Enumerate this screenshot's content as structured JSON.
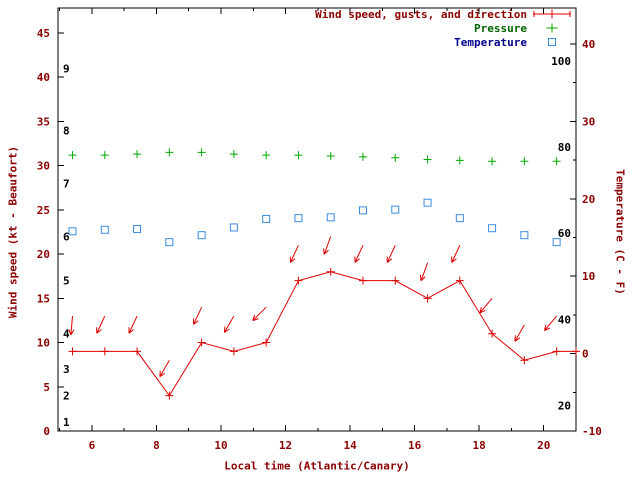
{
  "chart_data": {
    "type": "line",
    "x_axis": {
      "label": "Local time (Atlantic/Canary)",
      "min": 4.95,
      "max": 21.0,
      "major_ticks": [
        6,
        8,
        10,
        12,
        14,
        16,
        18,
        20
      ],
      "minor_ticks": [
        5,
        7,
        9,
        11,
        13,
        15,
        17,
        19,
        21
      ]
    },
    "y_left_axis": {
      "label": "Wind speed (kt - Beaufort)",
      "min": 0,
      "max": 45,
      "ticks": [
        0,
        5,
        10,
        15,
        20,
        25,
        30,
        35,
        40,
        45
      ],
      "beaufort_labels": [
        {
          "label": "1",
          "kt": 1
        },
        {
          "label": "2",
          "kt": 4
        },
        {
          "label": "3",
          "kt": 7
        },
        {
          "label": "4",
          "kt": 11
        },
        {
          "label": "5",
          "kt": 17
        },
        {
          "label": "6",
          "kt": 22
        },
        {
          "label": "7",
          "kt": 28
        },
        {
          "label": "8",
          "kt": 34
        },
        {
          "label": "9",
          "kt": 41
        }
      ]
    },
    "y_right_axis": {
      "label": "Temperature (C - F)",
      "min": -10,
      "max": 40,
      "ticks": [
        -10,
        0,
        10,
        20,
        30,
        40
      ],
      "minor_ticks": [
        -5,
        5,
        15,
        25,
        35
      ],
      "fahrenheit_labels": [
        {
          "label": "20",
          "celsius": -6.7
        },
        {
          "label": "40",
          "celsius": 4.4
        },
        {
          "label": "60",
          "celsius": 15.6
        },
        {
          "label": "80",
          "celsius": 26.7
        },
        {
          "label": "100",
          "celsius": 37.8
        }
      ]
    },
    "legend": [
      {
        "label": "Wind speed, gusts, and direction",
        "marker": "error-line-plus"
      },
      {
        "label": "Pressure",
        "marker": "plus"
      },
      {
        "label": "Temperature",
        "marker": "open-square"
      }
    ],
    "series": {
      "wind_speed_kt": {
        "x": [
          5.4,
          6.4,
          7.4,
          8.4,
          9.4,
          10.4,
          11.4,
          12.4,
          13.4,
          14.4,
          15.4,
          16.4,
          17.4,
          18.4,
          19.4,
          20.4,
          21.0
        ],
        "values": [
          9,
          9,
          9,
          4,
          10,
          9,
          10,
          17,
          18,
          17,
          17,
          15,
          17,
          11,
          8,
          9,
          9
        ]
      },
      "wind_gusts_kt": {
        "x": [
          5.4,
          6.4,
          7.4,
          8.4,
          9.4,
          10.4,
          11.4,
          12.4,
          13.4,
          14.4,
          15.4,
          16.4,
          17.4,
          18.4,
          19.4,
          20.4
        ],
        "values": [
          13,
          13,
          13,
          8,
          14,
          13,
          14,
          21,
          22,
          21,
          21,
          19,
          21,
          15,
          12,
          13
        ],
        "arrow_angles_deg_screen": [
          95,
          115,
          115,
          120,
          115,
          120,
          135,
          115,
          110,
          115,
          115,
          110,
          115,
          130,
          120,
          130
        ]
      },
      "pressure": {
        "x": [
          5.4,
          6.4,
          7.4,
          8.4,
          9.4,
          10.4,
          11.4,
          12.4,
          13.4,
          14.4,
          15.4,
          16.4,
          17.4,
          18.4,
          19.4,
          20.4
        ],
        "values_left_axis_units": [
          31.2,
          31.2,
          31.3,
          31.5,
          31.5,
          31.3,
          31.2,
          31.2,
          31.1,
          31.0,
          30.9,
          30.7,
          30.6,
          30.5,
          30.5,
          30.5
        ]
      },
      "temperature_c": {
        "x": [
          5.4,
          6.4,
          7.4,
          8.4,
          9.4,
          10.4,
          11.4,
          12.4,
          13.4,
          14.4,
          15.4,
          16.4,
          17.4,
          18.4,
          19.4,
          20.4
        ],
        "values": [
          15.8,
          16.0,
          16.1,
          14.4,
          15.3,
          16.3,
          17.4,
          17.5,
          17.6,
          18.5,
          18.6,
          19.5,
          17.5,
          16.2,
          15.3,
          14.4
        ]
      }
    },
    "colors": {
      "wind": "#e00000",
      "pressure": "#00a800",
      "temperature": "#3b8ae0",
      "axis_text": "#8b0000",
      "inner_scale_text": "#000000",
      "axis_line": "#000000",
      "legend_wind_text": "#8b0000",
      "legend_pressure_text": "#006400",
      "legend_temperature_text": "#00008b"
    }
  }
}
